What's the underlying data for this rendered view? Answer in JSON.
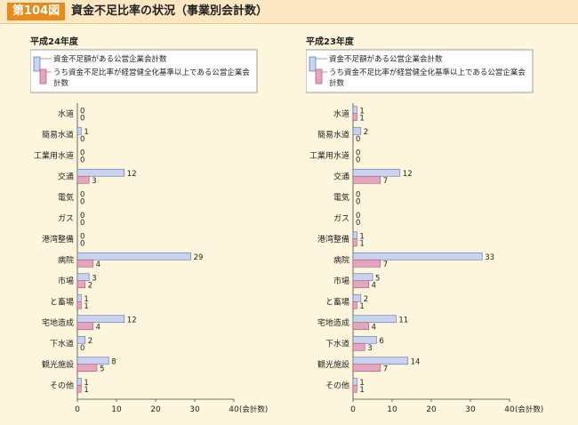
{
  "header": {
    "figure_number": "第104図",
    "title": "資金不足比率の状況（事業別会計数）"
  },
  "colors": {
    "series1": "#c9d3ee",
    "series1_stroke": "#5a6fb0",
    "series2": "#e3a6bf",
    "series2_stroke": "#b0507a",
    "background": "#fdf6dc"
  },
  "chart_data": [
    {
      "type": "bar",
      "orientation": "horizontal",
      "title": "平成24年度",
      "categories": [
        "水道",
        "簡易水道",
        "工業用水道",
        "交通",
        "電気",
        "ガス",
        "港湾整備",
        "病院",
        "市場",
        "と畜場",
        "宅地造成",
        "下水道",
        "観光施設",
        "その他"
      ],
      "series": [
        {
          "name": "資金不足額がある公営企業会計数",
          "values": [
            0,
            1,
            0,
            12,
            0,
            0,
            0,
            29,
            3,
            1,
            12,
            2,
            8,
            1
          ]
        },
        {
          "name": "うち資金不足比率が経営健全化基準以上である公営企業会計数",
          "values": [
            0,
            0,
            0,
            3,
            0,
            0,
            0,
            4,
            2,
            1,
            4,
            0,
            5,
            1
          ]
        }
      ],
      "xlim": [
        0,
        40
      ],
      "xticks": [
        "0",
        "10",
        "20",
        "30",
        "40"
      ],
      "xunit": "(会計数)"
    },
    {
      "type": "bar",
      "orientation": "horizontal",
      "title": "平成23年度",
      "categories": [
        "水道",
        "簡易水道",
        "工業用水道",
        "交通",
        "電気",
        "ガス",
        "港湾整備",
        "病院",
        "市場",
        "と畜場",
        "宅地造成",
        "下水道",
        "観光施設",
        "その他"
      ],
      "series": [
        {
          "name": "資金不足額がある公営企業会計数",
          "values": [
            1,
            2,
            0,
            12,
            0,
            0,
            1,
            33,
            5,
            2,
            11,
            6,
            14,
            1
          ]
        },
        {
          "name": "うち資金不足比率が経営健全化基準以上である公営企業会計数",
          "values": [
            1,
            0,
            0,
            7,
            0,
            0,
            1,
            7,
            4,
            1,
            4,
            3,
            7,
            1
          ]
        }
      ],
      "xlim": [
        0,
        40
      ],
      "xticks": [
        "0",
        "10",
        "20",
        "30",
        "40"
      ],
      "xunit": "(会計数)"
    }
  ]
}
